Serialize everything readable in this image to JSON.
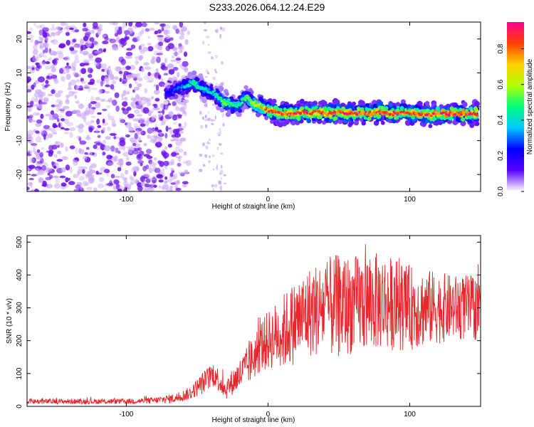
{
  "figure_title": "S233.2026.064.12.24.E29",
  "chart_data": [
    {
      "type": "heatmap",
      "title": "S233.2026.064.12.24.E29",
      "xlabel": "Height of straight line (km)",
      "ylabel": "Frequency (Hz)",
      "xlim": [
        -170,
        150
      ],
      "ylim": [
        -25,
        25
      ],
      "xticks": [
        -100,
        0,
        100
      ],
      "yticks": [
        -20,
        -10,
        0,
        10,
        20
      ],
      "colorbar": {
        "label": "Normalized spectral amplitude",
        "range": [
          0.0,
          0.95
        ],
        "ticks": [
          0.0,
          0.2,
          0.4,
          0.6,
          0.8
        ],
        "tick_labels": [
          "0.0",
          "0.2",
          "0.4",
          "0.6",
          "0.8"
        ],
        "colors": [
          "#ffffff",
          "#5500ff",
          "#0000ff",
          "#00c8ff",
          "#00ff80",
          "#b0ff00",
          "#ffd000",
          "#ff4000",
          "#ff0090"
        ]
      },
      "noise_region": {
        "x_range": [
          -170,
          -62
        ],
        "y_range": [
          -25,
          25
        ],
        "amplitude": 0.1
      },
      "ridge": {
        "x": [
          -72,
          -65,
          -60,
          -55,
          -52,
          -48,
          -45,
          -42,
          -38,
          -35,
          -32,
          -28,
          -25,
          -22,
          -18,
          -15,
          -12,
          -8,
          -5,
          0,
          5,
          10,
          15,
          20,
          25,
          30,
          35,
          40,
          45,
          50,
          55,
          60,
          65,
          70,
          75,
          80,
          85,
          90,
          95,
          100,
          105,
          110,
          115,
          120,
          125,
          130,
          135,
          140,
          145,
          148
        ],
        "y": [
          4,
          5,
          6,
          6.5,
          7,
          6,
          5,
          4.5,
          4,
          3,
          1.5,
          1,
          0.5,
          0,
          1.5,
          2.5,
          1.5,
          0.5,
          0,
          -1,
          -1.5,
          -2,
          -2,
          -2,
          -1.5,
          -2,
          -1.5,
          -2,
          -2,
          -1.5,
          -2,
          -2,
          -1.5,
          -2,
          -2,
          -1.5,
          -2,
          -2,
          -1.5,
          -2,
          -2,
          -2,
          -2.5,
          -2,
          -2,
          -2,
          -2,
          -2,
          -2,
          -2
        ],
        "amplitude": [
          0.2,
          0.28,
          0.35,
          0.45,
          0.5,
          0.45,
          0.4,
          0.38,
          0.42,
          0.45,
          0.55,
          0.55,
          0.5,
          0.45,
          0.5,
          0.55,
          0.6,
          0.65,
          0.72,
          0.8,
          0.85,
          0.85,
          0.82,
          0.85,
          0.88,
          0.85,
          0.86,
          0.85,
          0.86,
          0.85,
          0.86,
          0.86,
          0.85,
          0.86,
          0.86,
          0.85,
          0.86,
          0.86,
          0.85,
          0.88,
          0.86,
          0.86,
          0.88,
          0.86,
          0.86,
          0.88,
          0.87,
          0.88,
          0.88,
          0.87
        ]
      }
    },
    {
      "type": "line",
      "xlabel": "Height of straight line (km)",
      "ylabel": "SNR (10 * v/v)",
      "xlim": [
        -170,
        150
      ],
      "ylim": [
        0,
        520
      ],
      "xticks": [
        -100,
        0,
        100
      ],
      "yticks": [
        0,
        100,
        200,
        300,
        400,
        500
      ],
      "series": [
        {
          "name": "SNR",
          "color": "#e8262b",
          "envelope_x": [
            -170,
            -100,
            -80,
            -65,
            -55,
            -45,
            -38,
            -30,
            -25,
            -20,
            -15,
            -10,
            -5,
            0,
            5,
            10,
            20,
            30,
            40,
            50,
            60,
            70,
            80,
            90,
            100,
            110,
            120,
            130,
            140,
            150
          ],
          "envelope_mean": [
            15,
            15,
            18,
            25,
            40,
            75,
            100,
            50,
            75,
            95,
            120,
            150,
            185,
            200,
            215,
            225,
            260,
            290,
            300,
            305,
            310,
            315,
            320,
            310,
            300,
            300,
            300,
            300,
            300,
            300
          ],
          "envelope_amp": [
            8,
            8,
            10,
            15,
            20,
            35,
            40,
            30,
            40,
            50,
            60,
            70,
            80,
            90,
            100,
            115,
            130,
            140,
            150,
            160,
            150,
            150,
            150,
            140,
            130,
            120,
            110,
            100,
            100,
            100
          ]
        }
      ]
    }
  ]
}
